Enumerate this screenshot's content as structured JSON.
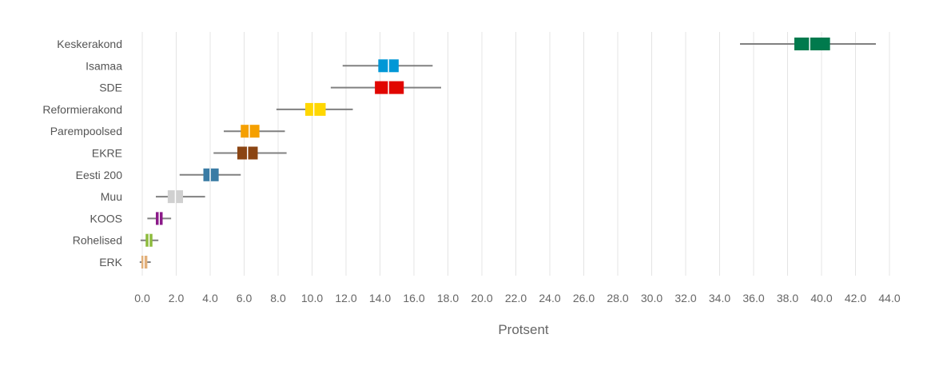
{
  "chart_data": {
    "type": "box",
    "xlabel": "Protsent",
    "xlim": [
      0,
      44
    ],
    "x_ticks": [
      "0.0",
      "2.0",
      "4.0",
      "6.0",
      "8.0",
      "10.0",
      "12.0",
      "14.0",
      "16.0",
      "18.0",
      "20.0",
      "22.0",
      "24.0",
      "26.0",
      "28.0",
      "30.0",
      "32.0",
      "34.0",
      "36.0",
      "38.0",
      "40.0",
      "42.0",
      "44.0"
    ],
    "grid": true,
    "series": [
      {
        "name": "Keskerakond",
        "whisker_low": 35.2,
        "q1": 38.4,
        "median": 39.3,
        "q3": 40.5,
        "whisker_high": 43.2,
        "color": "#007a4d"
      },
      {
        "name": "Isamaa",
        "whisker_low": 11.8,
        "q1": 13.9,
        "median": 14.5,
        "q3": 15.1,
        "whisker_high": 17.1,
        "color": "#0097d6"
      },
      {
        "name": "SDE",
        "whisker_low": 11.1,
        "q1": 13.7,
        "median": 14.5,
        "q3": 15.4,
        "whisker_high": 17.6,
        "color": "#e10600"
      },
      {
        "name": "Reformierakond",
        "whisker_low": 7.9,
        "q1": 9.6,
        "median": 10.1,
        "q3": 10.8,
        "whisker_high": 12.4,
        "color": "#ffd700"
      },
      {
        "name": "Parempoolsed",
        "whisker_low": 4.8,
        "q1": 5.8,
        "median": 6.3,
        "q3": 6.9,
        "whisker_high": 8.4,
        "color": "#f5a000"
      },
      {
        "name": "EKRE",
        "whisker_low": 4.2,
        "q1": 5.6,
        "median": 6.2,
        "q3": 6.8,
        "whisker_high": 8.5,
        "color": "#8b4513"
      },
      {
        "name": "Eesti 200",
        "whisker_low": 2.2,
        "q1": 3.6,
        "median": 4.0,
        "q3": 4.5,
        "whisker_high": 5.8,
        "color": "#3a7ca5"
      },
      {
        "name": "Muu",
        "whisker_low": 0.8,
        "q1": 1.5,
        "median": 1.95,
        "q3": 2.4,
        "whisker_high": 3.7,
        "color": "#d0d0d0"
      },
      {
        "name": "KOOS",
        "whisker_low": 0.3,
        "q1": 0.8,
        "median": 1.0,
        "q3": 1.2,
        "whisker_high": 1.7,
        "color": "#8b1a89"
      },
      {
        "name": "Rohelised",
        "whisker_low": -0.1,
        "q1": 0.2,
        "median": 0.4,
        "q3": 0.6,
        "whisker_high": 0.95,
        "color": "#8dbb3c"
      },
      {
        "name": "ERK",
        "whisker_low": -0.15,
        "q1": -0.05,
        "median": 0.1,
        "q3": 0.3,
        "whisker_high": 0.5,
        "color": "#e2b07a"
      }
    ]
  }
}
